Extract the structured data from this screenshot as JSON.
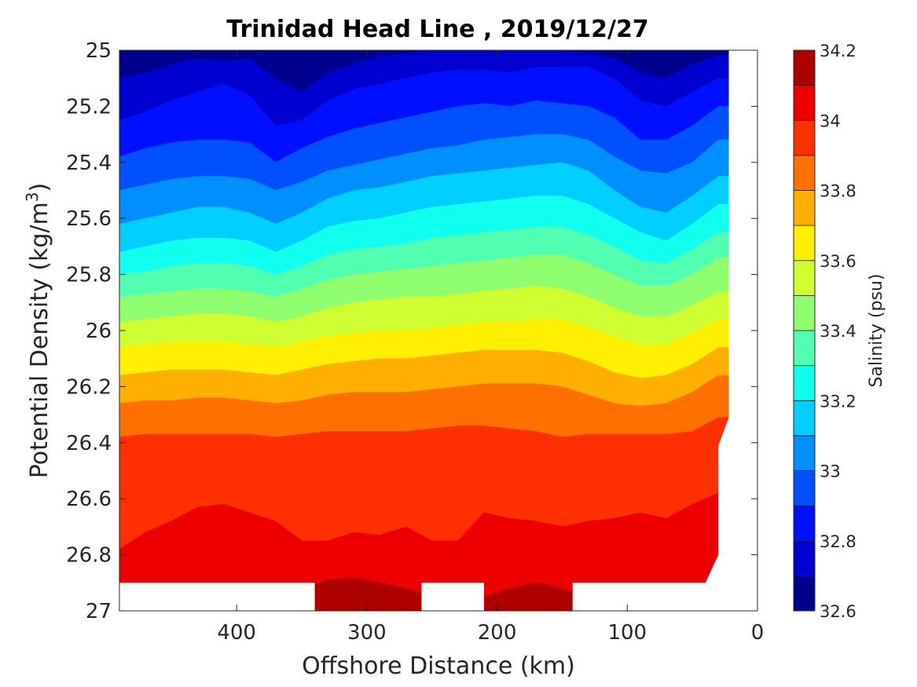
{
  "chart_data": {
    "type": "contour",
    "title": "Trinidad Head Line , 2019/12/27",
    "xlabel": "Offshore Distance (km)",
    "ylabel_main": "Potential Density (kg/m",
    "ylabel_sup": "3",
    "ylabel_close": ")",
    "x_reversed": true,
    "xlim": [
      0,
      490
    ],
    "ylim": [
      25,
      27
    ],
    "y_reversed": true,
    "x_ticks": [
      400,
      300,
      200,
      100,
      0
    ],
    "y_ticks": [
      25,
      25.2,
      25.4,
      25.6,
      25.8,
      26,
      26.2,
      26.4,
      26.6,
      26.8,
      27
    ],
    "colorbar": {
      "label": "Salinity (psu)",
      "range": [
        32.6,
        34.2
      ],
      "ticks": [
        34.2,
        34,
        33.8,
        33.6,
        33.4,
        33.2,
        33,
        32.8,
        32.6
      ],
      "levels": [
        32.6,
        32.7,
        32.8,
        32.9,
        33.0,
        33.1,
        33.2,
        33.3,
        33.4,
        33.5,
        33.6,
        33.7,
        33.8,
        33.9,
        34.0,
        34.1,
        34.2
      ],
      "colors": [
        "#00008f",
        "#0000cf",
        "#0010ff",
        "#0050ff",
        "#008fff",
        "#00cfff",
        "#10ffef",
        "#50ffaf",
        "#8fff70",
        "#cfff30",
        "#ffef00",
        "#ffaf00",
        "#ff7000",
        "#ff3000",
        "#ef0000",
        "#af0000"
      ]
    },
    "x_profile": [
      490,
      470,
      450,
      430,
      410,
      390,
      370,
      350,
      330,
      310,
      290,
      270,
      250,
      230,
      210,
      190,
      170,
      150,
      130,
      110,
      90,
      70,
      50,
      30
    ],
    "isohalines": [
      {
        "salinity": 32.7,
        "y": [
          25.1,
          25.08,
          25.05,
          25.03,
          25.04,
          25.03,
          25.1,
          25.15,
          25.08,
          25.05,
          25.02,
          25.01,
          25.0,
          25.0,
          25.0,
          25.0,
          25.0,
          25.0,
          25.01,
          25.03,
          25.08,
          25.1,
          25.05,
          25.02
        ]
      },
      {
        "salinity": 32.8,
        "y": [
          25.25,
          25.22,
          25.18,
          25.15,
          25.12,
          25.16,
          25.27,
          25.25,
          25.18,
          25.14,
          25.12,
          25.1,
          25.08,
          25.07,
          25.07,
          25.08,
          25.06,
          25.06,
          25.06,
          25.1,
          25.18,
          25.2,
          25.15,
          25.1
        ]
      },
      {
        "salinity": 32.9,
        "y": [
          25.38,
          25.35,
          25.33,
          25.32,
          25.32,
          25.33,
          25.4,
          25.35,
          25.31,
          25.28,
          25.26,
          25.24,
          25.22,
          25.2,
          25.19,
          25.2,
          25.18,
          25.19,
          25.2,
          25.24,
          25.32,
          25.32,
          25.27,
          25.2
        ]
      },
      {
        "salinity": 33.0,
        "y": [
          25.5,
          25.48,
          25.46,
          25.45,
          25.45,
          25.46,
          25.5,
          25.47,
          25.43,
          25.41,
          25.39,
          25.37,
          25.35,
          25.34,
          25.32,
          25.31,
          25.3,
          25.3,
          25.32,
          25.38,
          25.43,
          25.44,
          25.4,
          25.32
        ]
      },
      {
        "salinity": 33.1,
        "y": [
          25.62,
          25.6,
          25.58,
          25.56,
          25.56,
          25.58,
          25.62,
          25.58,
          25.53,
          25.5,
          25.49,
          25.47,
          25.45,
          25.44,
          25.43,
          25.42,
          25.41,
          25.4,
          25.43,
          25.5,
          25.56,
          25.58,
          25.52,
          25.45
        ]
      },
      {
        "salinity": 33.2,
        "y": [
          25.72,
          25.7,
          25.68,
          25.67,
          25.67,
          25.68,
          25.72,
          25.68,
          25.63,
          25.61,
          25.6,
          25.58,
          25.56,
          25.55,
          25.54,
          25.53,
          25.52,
          25.52,
          25.55,
          25.6,
          25.65,
          25.68,
          25.62,
          25.55
        ]
      },
      {
        "salinity": 33.3,
        "y": [
          25.8,
          25.79,
          25.77,
          25.76,
          25.76,
          25.77,
          25.8,
          25.77,
          25.73,
          25.71,
          25.7,
          25.69,
          25.67,
          25.66,
          25.65,
          25.64,
          25.63,
          25.63,
          25.66,
          25.7,
          25.75,
          25.76,
          25.71,
          25.65
        ]
      },
      {
        "salinity": 33.4,
        "y": [
          25.88,
          25.87,
          25.86,
          25.85,
          25.85,
          25.86,
          25.88,
          25.85,
          25.82,
          25.8,
          25.79,
          25.78,
          25.77,
          25.76,
          25.75,
          25.74,
          25.73,
          25.73,
          25.76,
          25.8,
          25.84,
          25.84,
          25.8,
          25.74
        ]
      },
      {
        "salinity": 33.5,
        "y": [
          25.97,
          25.96,
          25.95,
          25.94,
          25.94,
          25.95,
          25.97,
          25.95,
          25.92,
          25.9,
          25.89,
          25.88,
          25.88,
          25.87,
          25.86,
          25.85,
          25.84,
          25.85,
          25.88,
          25.92,
          25.95,
          25.95,
          25.91,
          25.86
        ]
      },
      {
        "salinity": 33.6,
        "y": [
          26.06,
          26.05,
          26.04,
          26.04,
          26.04,
          26.05,
          26.06,
          26.04,
          26.02,
          26.01,
          26.0,
          26.0,
          25.99,
          25.98,
          25.97,
          25.97,
          25.96,
          25.96,
          25.99,
          26.02,
          26.05,
          26.05,
          26.01,
          25.96
        ]
      },
      {
        "salinity": 33.7,
        "y": [
          26.16,
          26.15,
          26.14,
          26.14,
          26.14,
          26.15,
          26.16,
          26.14,
          26.12,
          26.11,
          26.1,
          26.1,
          26.09,
          26.08,
          26.07,
          26.07,
          26.07,
          26.08,
          26.11,
          26.15,
          26.17,
          26.16,
          26.12,
          26.06
        ]
      },
      {
        "salinity": 33.8,
        "y": [
          26.26,
          26.25,
          26.25,
          26.24,
          26.24,
          26.25,
          26.26,
          26.25,
          26.23,
          26.22,
          26.22,
          26.22,
          26.21,
          26.2,
          26.19,
          26.19,
          26.19,
          26.2,
          26.23,
          26.26,
          26.27,
          26.26,
          26.22,
          26.16
        ]
      },
      {
        "salinity": 33.9,
        "y": [
          26.38,
          26.37,
          26.37,
          26.37,
          26.37,
          26.37,
          26.38,
          26.37,
          26.36,
          26.36,
          26.36,
          26.36,
          26.35,
          26.34,
          26.34,
          26.35,
          26.36,
          26.38,
          26.37,
          26.37,
          26.37,
          26.37,
          26.36,
          26.31
        ]
      },
      {
        "salinity": 34.0,
        "y": [
          26.78,
          26.72,
          26.68,
          26.63,
          26.62,
          26.65,
          26.68,
          26.75,
          26.75,
          26.72,
          26.73,
          26.7,
          26.75,
          26.75,
          26.65,
          26.67,
          26.68,
          26.7,
          26.68,
          26.67,
          26.65,
          26.67,
          26.62,
          26.58
        ]
      },
      {
        "salinity": 34.1,
        "y": [
          26.95,
          26.95,
          26.95,
          26.95,
          26.95,
          26.95,
          26.95,
          26.92,
          26.89,
          26.88,
          26.9,
          26.92,
          26.95,
          26.95,
          26.95,
          26.92,
          26.9,
          26.92,
          26.95,
          26.95,
          26.95,
          26.95,
          26.95,
          26.95
        ]
      }
    ]
  }
}
